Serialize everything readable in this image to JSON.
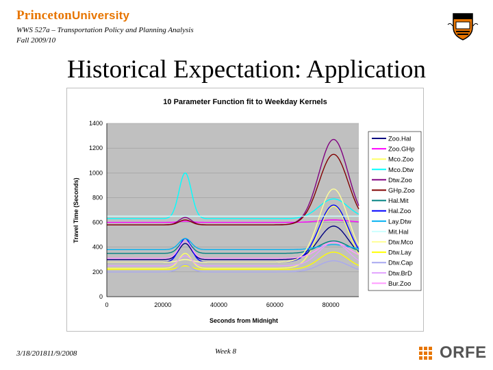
{
  "header": {
    "university_main": "Princeton",
    "university_sub": "University",
    "course": "WWS 527a – Transportation Policy and Planning Analysis",
    "term": "Fall 2009/10"
  },
  "slide": {
    "title": "Historical Expectation: Application"
  },
  "footer": {
    "date": "3/18/201811/9/2008",
    "week": "Week 8",
    "logo_text": "ORFE"
  },
  "colors": {
    "accent": "#e77500",
    "plot_bg": "#c0c0c0"
  },
  "chart_data": {
    "type": "line",
    "title": "10 Parameter Function fit to Weekday Kernels",
    "xlabel": "Seconds from Midnight",
    "ylabel": "Travel Time (Seconds)",
    "xlim": [
      0,
      90000
    ],
    "ylim": [
      0,
      1400
    ],
    "xticks": [
      0,
      20000,
      40000,
      60000,
      80000
    ],
    "yticks": [
      0,
      200,
      400,
      600,
      800,
      1000,
      1200,
      1400
    ],
    "grid": "horizontal",
    "legend": "right",
    "series": [
      {
        "name": "Zoo.Hal",
        "color": "#000080",
        "base": 300,
        "am": 130,
        "pm": 270
      },
      {
        "name": "Zoo.GHp",
        "color": "#ff00ff",
        "base": 600,
        "am": 10,
        "pm": 20
      },
      {
        "name": "Mco.Zoo",
        "color": "#ffff66",
        "base": 230,
        "am": 120,
        "pm": 500
      },
      {
        "name": "Mco.Dtw",
        "color": "#00ffff",
        "base": 630,
        "am": 370,
        "pm": 160
      },
      {
        "name": "Dtw.Zoo",
        "color": "#800080",
        "base": 580,
        "am": 60,
        "pm": 690
      },
      {
        "name": "GHp.Zoo",
        "color": "#800000",
        "base": 580,
        "am": 40,
        "pm": 570
      },
      {
        "name": "Hal.Mit",
        "color": "#008080",
        "base": 350,
        "am": 100,
        "pm": 100
      },
      {
        "name": "Hal.Zoo",
        "color": "#0000ff",
        "base": 280,
        "am": 190,
        "pm": 460
      },
      {
        "name": "Lay.Dtw",
        "color": "#00b0f0",
        "base": 380,
        "am": 90,
        "pm": 40
      },
      {
        "name": "Mit.Hal",
        "color": "#ccffff",
        "base": 650,
        "am": 0,
        "pm": 0
      },
      {
        "name": "Dtw.Mco",
        "color": "#ffff99",
        "base": 280,
        "am": 20,
        "pm": 590
      },
      {
        "name": "Dtw.Lay",
        "color": "#ffff00",
        "base": 220,
        "am": 30,
        "pm": 140
      },
      {
        "name": "Dtw.Cap",
        "color": "#a8a8f0",
        "base": 200,
        "am": 60,
        "pm": 90
      },
      {
        "name": "Dtw.BrD",
        "color": "#e0a0ff",
        "base": 250,
        "am": 80,
        "pm": 190
      },
      {
        "name": "Bur.Zoo",
        "color": "#ff99ff",
        "base": 310,
        "am": 140,
        "pm": 130
      }
    ]
  }
}
